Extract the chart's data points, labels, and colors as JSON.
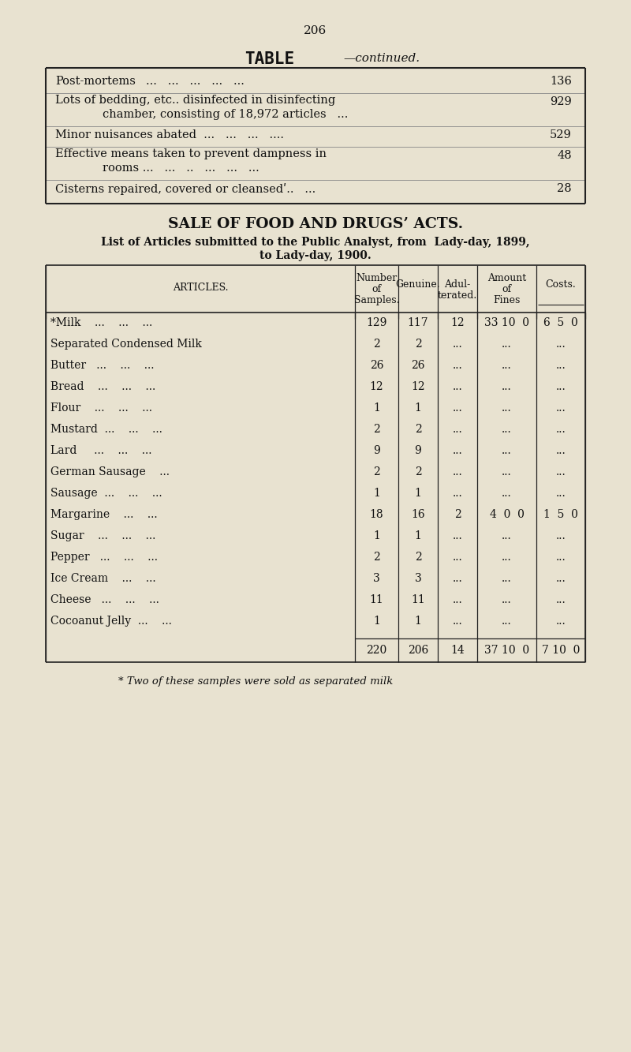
{
  "bg_color": "#e8e2d0",
  "page_number": "206",
  "top_rows": [
    {
      "text1": "Post-mortems",
      "text2": "...   ...   ...   ...   ...",
      "value": "136",
      "multiline": false
    },
    {
      "text1": "Lots of bedding, etc.. disinfected in disinfecting",
      "text2": "chamber, consisting of 18,972 articles   ...",
      "value": "929",
      "multiline": true
    },
    {
      "text1": "Minor nuisances abated  ...   ...   ...   ....",
      "text2": "",
      "value": "529",
      "multiline": false
    },
    {
      "text1": "Effective means taken to prevent dampness in",
      "text2": "rooms ...   ...   ..   ...   ...   ...",
      "value": "48",
      "multiline": true
    },
    {
      "text1": "Cisterns repaired, covered or cleansedʹ..   ...",
      "text2": "",
      "value": "28",
      "multiline": false
    }
  ],
  "sale_title": "SALE OF FOOD AND DRUGS’ ACTS.",
  "sale_subtitle1": "List of Articles submitted to the Public Analyst, from  Lady-day, 1899,",
  "sale_subtitle2": "to Lady-day, 1900.",
  "col_headers_line1": [
    "ARTICLES.",
    "Number",
    "Genuine.",
    "Adul-",
    "Amount",
    "Costs."
  ],
  "col_headers_line2": [
    "",
    "of",
    "",
    "terated.",
    "of",
    ""
  ],
  "col_headers_line3": [
    "",
    "Samples.",
    "",
    "",
    "Fines",
    ""
  ],
  "data_rows": [
    {
      "article": "*Milk    ...    ...    ...",
      "samples": "129",
      "genuine": "117",
      "adulterated": "12",
      "fines": "33 10  0",
      "costs": "6  5  0"
    },
    {
      "article": "Separated Condensed Milk",
      "samples": "2",
      "genuine": "2",
      "adulterated": "...",
      "fines": "...",
      "costs": "..."
    },
    {
      "article": "Butter   ...    ...    ...",
      "samples": "26",
      "genuine": "26",
      "adulterated": "...",
      "fines": "...",
      "costs": "..."
    },
    {
      "article": "Bread    ...    ...    ...",
      "samples": "12",
      "genuine": "12",
      "adulterated": "...",
      "fines": "...",
      "costs": "..."
    },
    {
      "article": "Flour    ...    ...    ...",
      "samples": "1",
      "genuine": "1",
      "adulterated": "...",
      "fines": "...",
      "costs": "..."
    },
    {
      "article": "Mustard  ...    ...    ...",
      "samples": "2",
      "genuine": "2",
      "adulterated": "...",
      "fines": "...",
      "costs": "..."
    },
    {
      "article": "Lard     ...    ...    ...",
      "samples": "9",
      "genuine": "9",
      "adulterated": "...",
      "fines": "...",
      "costs": "..."
    },
    {
      "article": "German Sausage    ...",
      "samples": "2",
      "genuine": "2",
      "adulterated": "...",
      "fines": "...",
      "costs": "..."
    },
    {
      "article": "Sausage  ...    ...    ...",
      "samples": "1",
      "genuine": "1",
      "adulterated": "...",
      "fines": "...",
      "costs": "..."
    },
    {
      "article": "Margarine    ...    ...",
      "samples": "18",
      "genuine": "16",
      "adulterated": "2",
      "fines": "4  0  0",
      "costs": "1  5  0"
    },
    {
      "article": "Sugar    ...    ...    ...",
      "samples": "1",
      "genuine": "1",
      "adulterated": "...",
      "fines": "...",
      "costs": "..."
    },
    {
      "article": "Pepper   ...    ...    ...",
      "samples": "2",
      "genuine": "2",
      "adulterated": "...",
      "fines": "...",
      "costs": "..."
    },
    {
      "article": "Ice Cream    ...    ...",
      "samples": "3",
      "genuine": "3",
      "adulterated": "...",
      "fines": "...",
      "costs": "..."
    },
    {
      "article": "Cheese   ...    ...    ...",
      "samples": "11",
      "genuine": "11",
      "adulterated": "...",
      "fines": "...",
      "costs": "..."
    },
    {
      "article": "Cocoanut Jelly  ...    ...",
      "samples": "1",
      "genuine": "1",
      "adulterated": "...",
      "fines": "...",
      "costs": "..."
    }
  ],
  "totals": {
    "samples": "220",
    "genuine": "206",
    "adulterated": "14",
    "fines": "37 10  0",
    "costs": "7 10  0"
  },
  "footnote": "* Two of these samples were sold as separated milk"
}
